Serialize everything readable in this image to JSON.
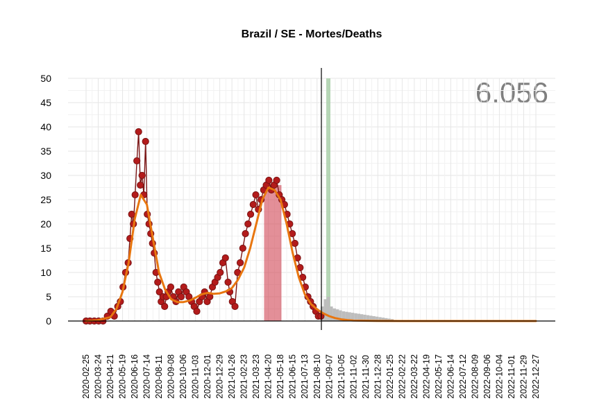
{
  "chart_data": {
    "type": "line",
    "title": "Brazil / SE - Mortes/Deaths",
    "total_label": "6.056",
    "xlabel": "",
    "ylabel": "",
    "ylim": [
      0,
      50
    ],
    "yticks": [
      0,
      5,
      10,
      15,
      20,
      25,
      30,
      35,
      40,
      45,
      50
    ],
    "x_range": [
      "2020-02-25",
      "2022-12-27"
    ],
    "xticks": [
      "2020-02-25",
      "2020-03-24",
      "2020-04-21",
      "2020-05-19",
      "2020-06-16",
      "2020-07-14",
      "2020-08-11",
      "2020-09-08",
      "2020-10-06",
      "2020-11-03",
      "2020-12-01",
      "2020-12-29",
      "2021-01-26",
      "2021-02-23",
      "2021-03-23",
      "2021-04-20",
      "2021-05-18",
      "2021-06-15",
      "2021-07-13",
      "2021-08-10",
      "2021-09-07",
      "2021-10-05",
      "2021-11-02",
      "2021-11-30",
      "2021-12-28",
      "2022-01-25",
      "2022-02-22",
      "2022-03-22",
      "2022-04-19",
      "2022-05-17",
      "2022-06-14",
      "2022-07-12",
      "2022-08-09",
      "2022-09-06",
      "2022-10-04",
      "2022-11-01",
      "2022-11-29",
      "2022-12-27"
    ],
    "grid": true,
    "colors": {
      "observed_line": "#7a1414",
      "observed_point": "#b31b1b",
      "fit": "#e8760f",
      "forecast_bars": "#bdbdbd",
      "highlight_band": "#cc3344",
      "today_marker": "#000000",
      "green_marker": "#a9cfa9",
      "grid": "#e6e6e6",
      "total_text": "#7f7f7f"
    },
    "today": "2021-08-20",
    "green_marker_date": "2021-09-05",
    "highlight_band": {
      "start": "2021-04-10",
      "end": "2021-05-20"
    },
    "observed": {
      "x": [
        "2020-02-25",
        "2020-03-05",
        "2020-03-15",
        "2020-03-25",
        "2020-04-04",
        "2020-04-14",
        "2020-04-22",
        "2020-04-30",
        "2020-05-08",
        "2020-05-14",
        "2020-05-20",
        "2020-05-26",
        "2020-06-01",
        "2020-06-05",
        "2020-06-09",
        "2020-06-13",
        "2020-06-17",
        "2020-06-21",
        "2020-06-25",
        "2020-06-29",
        "2020-07-03",
        "2020-07-07",
        "2020-07-11",
        "2020-07-15",
        "2020-07-19",
        "2020-07-23",
        "2020-07-27",
        "2020-07-31",
        "2020-08-04",
        "2020-08-08",
        "2020-08-12",
        "2020-08-16",
        "2020-08-20",
        "2020-08-24",
        "2020-08-28",
        "2020-09-01",
        "2020-09-07",
        "2020-09-13",
        "2020-09-19",
        "2020-09-25",
        "2020-10-01",
        "2020-10-07",
        "2020-10-13",
        "2020-10-19",
        "2020-10-25",
        "2020-10-31",
        "2020-11-06",
        "2020-11-12",
        "2020-11-18",
        "2020-11-24",
        "2020-11-30",
        "2020-12-06",
        "2020-12-12",
        "2020-12-18",
        "2020-12-24",
        "2020-12-30",
        "2021-01-05",
        "2021-01-11",
        "2021-01-17",
        "2021-01-21",
        "2021-01-27",
        "2021-02-02",
        "2021-02-08",
        "2021-02-14",
        "2021-02-20",
        "2021-02-26",
        "2021-03-04",
        "2021-03-10",
        "2021-03-16",
        "2021-03-22",
        "2021-03-28",
        "2021-04-03",
        "2021-04-09",
        "2021-04-15",
        "2021-04-21",
        "2021-04-27",
        "2021-05-03",
        "2021-05-09",
        "2021-05-15",
        "2021-05-21",
        "2021-05-27",
        "2021-06-02",
        "2021-06-08",
        "2021-06-14",
        "2021-06-20",
        "2021-06-26",
        "2021-07-02",
        "2021-07-08",
        "2021-07-14",
        "2021-07-20",
        "2021-07-26",
        "2021-08-01",
        "2021-08-07",
        "2021-08-13",
        "2021-08-19"
      ],
      "y": [
        0,
        0,
        0,
        0,
        0,
        1,
        2,
        1,
        3,
        4,
        7,
        10,
        12,
        17,
        22,
        20,
        26,
        33,
        39,
        28,
        30,
        26,
        37,
        22,
        20,
        18,
        16,
        14,
        10,
        8,
        6,
        4,
        5,
        3,
        5,
        6,
        7,
        5,
        4,
        6,
        5,
        7,
        6,
        5,
        4,
        3,
        2,
        4,
        5,
        6,
        4,
        5,
        7,
        8,
        9,
        10,
        12,
        13,
        8,
        6,
        4,
        3,
        10,
        12,
        15,
        18,
        20,
        22,
        24,
        26,
        23,
        25,
        27,
        28,
        29,
        27,
        28,
        29,
        26,
        25,
        24,
        22,
        20,
        18,
        16,
        13,
        11,
        9,
        7,
        5,
        4,
        3,
        2,
        1,
        1
      ]
    },
    "fit": {
      "x": [
        "2020-02-25",
        "2020-03-24",
        "2020-04-21",
        "2020-05-05",
        "2020-05-19",
        "2020-06-02",
        "2020-06-16",
        "2020-06-30",
        "2020-07-14",
        "2020-07-28",
        "2020-08-11",
        "2020-08-25",
        "2020-09-08",
        "2020-09-22",
        "2020-10-06",
        "2020-10-20",
        "2020-11-03",
        "2020-11-17",
        "2020-12-01",
        "2020-12-15",
        "2020-12-29",
        "2021-01-12",
        "2021-01-26",
        "2021-02-09",
        "2021-02-23",
        "2021-03-09",
        "2021-03-23",
        "2021-04-06",
        "2021-04-20",
        "2021-05-04",
        "2021-05-18",
        "2021-06-01",
        "2021-06-15",
        "2021-06-29",
        "2021-07-13",
        "2021-07-27",
        "2021-08-10",
        "2021-08-24",
        "2021-09-07",
        "2021-09-21",
        "2021-10-05",
        "2021-10-19",
        "2021-11-02",
        "2021-11-30",
        "2021-12-28",
        "2022-02-22",
        "2022-04-19",
        "2022-06-14",
        "2022-08-09",
        "2022-10-04",
        "2022-11-29",
        "2022-12-27"
      ],
      "y": [
        0,
        0.2,
        0.8,
        2.5,
        6,
        12,
        21,
        26,
        24,
        17,
        10,
        6.5,
        4.5,
        3.9,
        3.9,
        4.2,
        4.8,
        5.5,
        5.8,
        5.6,
        5.7,
        6.1,
        6.8,
        8.5,
        11,
        15,
        20,
        25,
        27.5,
        27,
        25,
        20,
        14,
        9,
        5.5,
        3.5,
        2.4,
        1.6,
        1.0,
        0.6,
        0.35,
        0.2,
        0.1,
        0.05,
        0.02,
        0,
        0,
        0,
        0,
        0,
        0,
        0
      ]
    },
    "forecast": {
      "x": [
        "2021-08-22",
        "2021-08-29",
        "2021-09-05",
        "2021-09-12",
        "2021-09-19",
        "2021-09-26",
        "2021-10-03",
        "2021-10-10",
        "2021-10-17",
        "2021-10-24",
        "2021-10-31",
        "2021-11-07",
        "2021-11-14",
        "2021-11-21",
        "2021-11-28",
        "2021-12-05",
        "2021-12-12",
        "2021-12-19",
        "2021-12-26",
        "2022-01-02",
        "2022-01-09",
        "2022-01-16",
        "2022-01-23",
        "2022-01-30"
      ],
      "y": [
        3,
        4.5,
        5,
        3,
        2.6,
        2.4,
        2.2,
        2,
        1.9,
        1.8,
        1.7,
        1.6,
        1.5,
        1.4,
        1.3,
        1.2,
        1.1,
        1.0,
        0.9,
        0.8,
        0.7,
        0.6,
        0.5,
        0.4
      ]
    }
  }
}
